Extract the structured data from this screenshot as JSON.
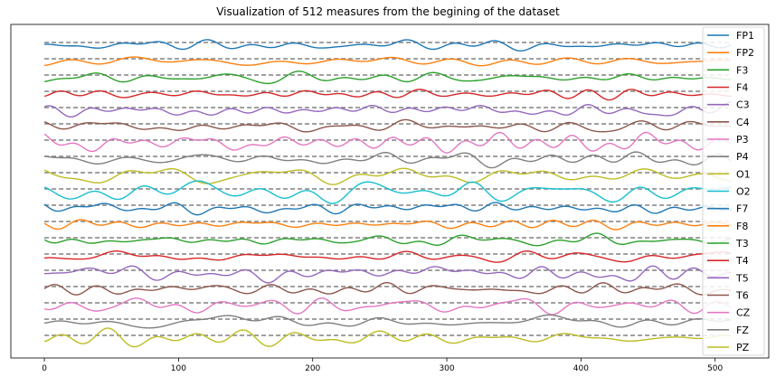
{
  "chart_data": {
    "type": "line",
    "title": "Visualization of 512 measures from the begining of the dataset",
    "xlabel": "",
    "ylabel": "",
    "xlim": [
      -25,
      540
    ],
    "x_ticks": [
      0,
      100,
      200,
      300,
      400,
      500
    ],
    "x_tick_labels": [
      "0",
      "100",
      "200",
      "300",
      "400",
      "500"
    ],
    "y_ticks_visible": false,
    "grid": false,
    "legend_position": "right",
    "baseline_style": "dashed gray",
    "series": [
      {
        "name": "FP1",
        "color": "#1f77b4",
        "amplitude": 0.45
      },
      {
        "name": "FP2",
        "color": "#ff7f0e",
        "amplitude": 0.4
      },
      {
        "name": "F3",
        "color": "#2ca02c",
        "amplitude": 0.5
      },
      {
        "name": "F4",
        "color": "#d62728",
        "amplitude": 0.5
      },
      {
        "name": "C3",
        "color": "#9467bd",
        "amplitude": 0.6
      },
      {
        "name": "C4",
        "color": "#8c564b",
        "amplitude": 0.55
      },
      {
        "name": "P3",
        "color": "#e377c2",
        "amplitude": 0.8
      },
      {
        "name": "P4",
        "color": "#7f7f7f",
        "amplitude": 0.65
      },
      {
        "name": "O1",
        "color": "#bcbd22",
        "amplitude": 0.95
      },
      {
        "name": "O2",
        "color": "#17becf",
        "amplitude": 0.95
      },
      {
        "name": "F7",
        "color": "#1f77b4",
        "amplitude": 0.45
      },
      {
        "name": "F8",
        "color": "#ff7f0e",
        "amplitude": 0.35
      },
      {
        "name": "T3",
        "color": "#2ca02c",
        "amplitude": 0.5
      },
      {
        "name": "T4",
        "color": "#d62728",
        "amplitude": 0.55
      },
      {
        "name": "T5",
        "color": "#9467bd",
        "amplitude": 0.7
      },
      {
        "name": "T6",
        "color": "#8c564b",
        "amplitude": 0.6
      },
      {
        "name": "CZ",
        "color": "#e377c2",
        "amplitude": 0.75
      },
      {
        "name": "FZ",
        "color": "#7f7f7f",
        "amplitude": 0.55
      },
      {
        "name": "PZ",
        "color": "#bcbd22",
        "amplitude": 0.85
      }
    ]
  }
}
